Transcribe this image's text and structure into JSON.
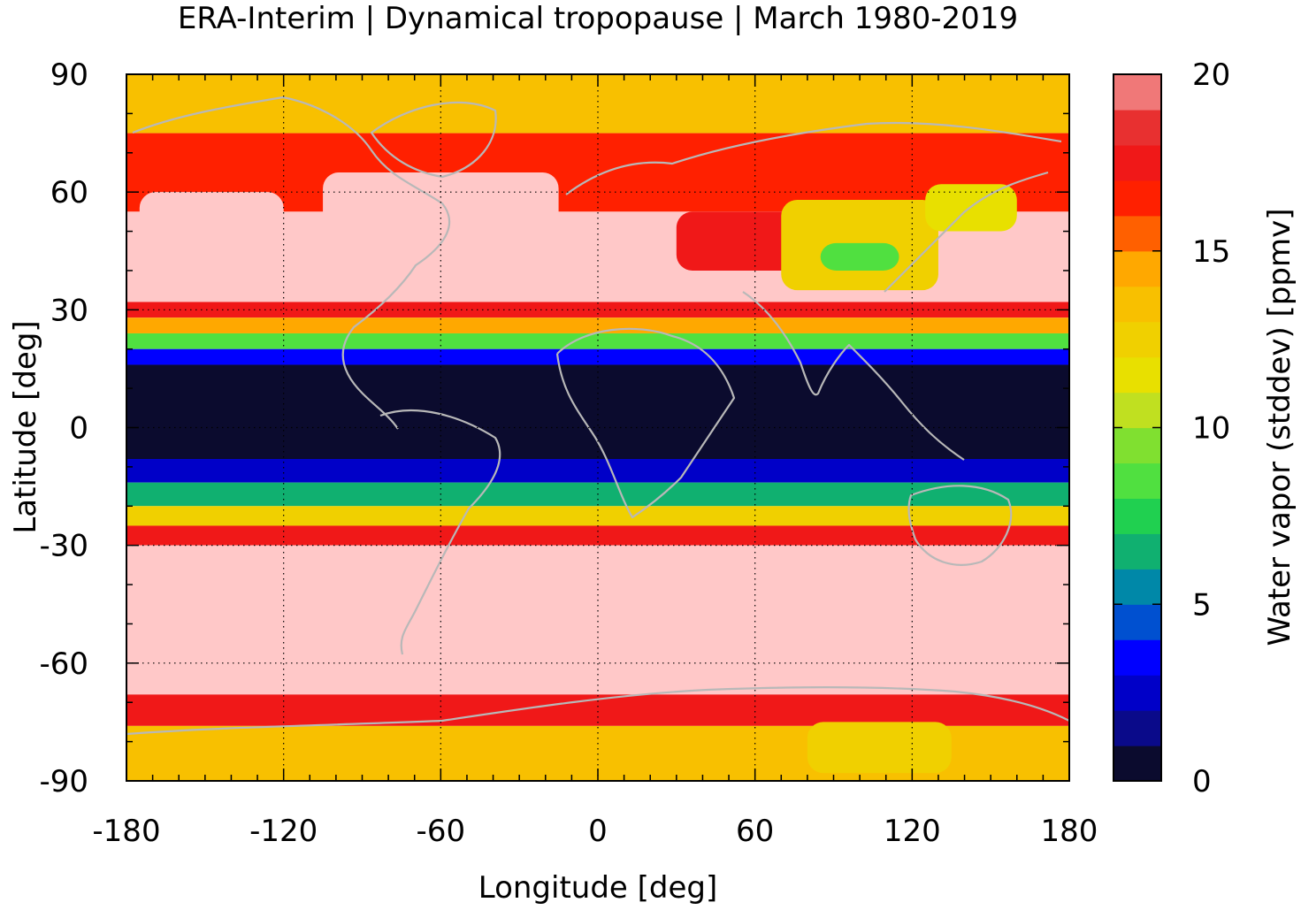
{
  "title": "ERA-Interim | Dynamical tropopause | March 1980-2019",
  "chart_data": {
    "type": "heatmap",
    "title": "ERA-Interim | Dynamical tropopause | March 1980-2019",
    "xlabel": "Longitude [deg]",
    "ylabel": "Latitude [deg]",
    "xlim": [
      -180,
      180
    ],
    "ylim": [
      -90,
      90
    ],
    "x_ticks": [
      -180,
      -120,
      -60,
      0,
      60,
      120,
      180
    ],
    "y_ticks": [
      90,
      60,
      30,
      0,
      -30,
      -60,
      -90
    ],
    "x_tick_labels": [
      "-180",
      "-120",
      "-60",
      "0",
      "60",
      "120",
      "180"
    ],
    "y_tick_labels": [
      "90",
      "60",
      "30",
      "0",
      "-30",
      "-60",
      "-90"
    ],
    "grid": true,
    "colorbar": {
      "label": "Water vapor (stddev) [ppmv]",
      "range": [
        0,
        20
      ],
      "ticks": [
        0,
        5,
        10,
        15,
        20
      ],
      "tick_labels": [
        "0",
        "5",
        "10",
        "15",
        "20"
      ],
      "levels": [
        0,
        1,
        2,
        3,
        4,
        5,
        6,
        7,
        8,
        9,
        10,
        11,
        12,
        13,
        14,
        15,
        16,
        17,
        18,
        19,
        20
      ],
      "colors": [
        "#0b0b2e",
        "#0a0a8a",
        "#0000c8",
        "#0000ff",
        "#0050d0",
        "#0088a8",
        "#10b070",
        "#20d050",
        "#50e040",
        "#80e030",
        "#c0e020",
        "#e8e000",
        "#f0d000",
        "#f8c000",
        "#ffa800",
        "#ff6000",
        "#ff2000",
        "#f01818",
        "#e83030",
        "#f07878",
        "#ffc8c8"
      ]
    },
    "latitude_bands": [
      {
        "lat": [
          75,
          90
        ],
        "value": 12.5
      },
      {
        "lat": [
          55,
          75
        ],
        "value": 15.5
      },
      {
        "lat": [
          32,
          55
        ],
        "value": 19.5
      },
      {
        "lat": [
          28,
          32
        ],
        "value": 16.5
      },
      {
        "lat": [
          24,
          28
        ],
        "value": 13.5
      },
      {
        "lat": [
          20,
          24
        ],
        "value": 8.5
      },
      {
        "lat": [
          16,
          20
        ],
        "value": 3.5
      },
      {
        "lat": [
          -8,
          16
        ],
        "value": 0.5
      },
      {
        "lat": [
          -14,
          -8
        ],
        "value": 2.5
      },
      {
        "lat": [
          -20,
          -14
        ],
        "value": 6.5
      },
      {
        "lat": [
          -25,
          -20
        ],
        "value": 11.5
      },
      {
        "lat": [
          -30,
          -25
        ],
        "value": 16.5
      },
      {
        "lat": [
          -68,
          -30
        ],
        "value": 19.5
      },
      {
        "lat": [
          -76,
          -68
        ],
        "value": 16.5
      },
      {
        "lat": [
          -90,
          -76
        ],
        "value": 13.0
      }
    ],
    "regions": [
      {
        "lon": [
          -175,
          -120
        ],
        "lat": [
          33,
          60
        ],
        "value": 19.5
      },
      {
        "lon": [
          -105,
          -15
        ],
        "lat": [
          35,
          65
        ],
        "value": 19.5
      },
      {
        "lon": [
          30,
          80
        ],
        "lat": [
          40,
          55
        ],
        "value": 16.5
      },
      {
        "lon": [
          70,
          130
        ],
        "lat": [
          35,
          58
        ],
        "value": 11.5
      },
      {
        "lon": [
          85,
          115
        ],
        "lat": [
          40,
          47
        ],
        "value": 8.5
      },
      {
        "lon": [
          125,
          160
        ],
        "lat": [
          50,
          62
        ],
        "value": 11.0
      },
      {
        "lon": [
          80,
          135
        ],
        "lat": [
          -88,
          -75
        ],
        "value": 11.5
      }
    ]
  }
}
